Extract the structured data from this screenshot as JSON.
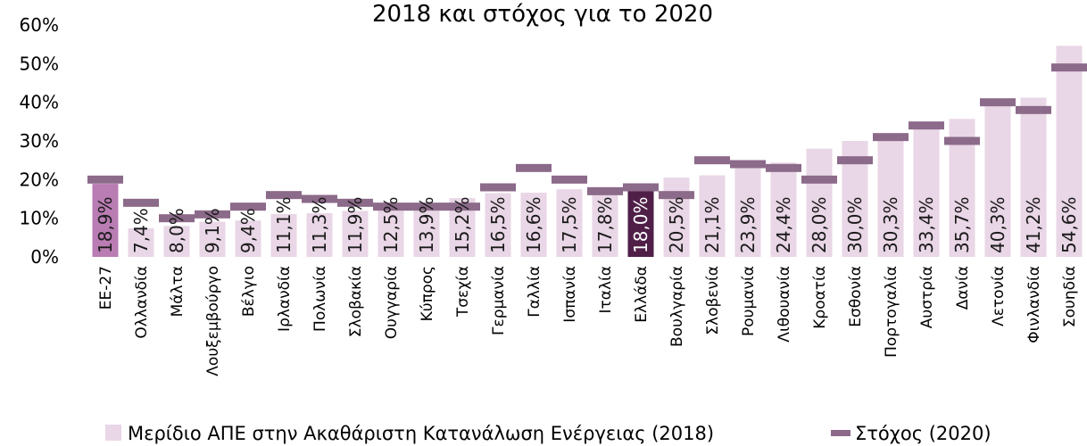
{
  "chart_data": {
    "type": "bar",
    "title": "2018 και στόχος για το 2020",
    "yticks": [
      "0%",
      "10%",
      "20%",
      "30%",
      "40%",
      "50%",
      "60%"
    ],
    "ylim": [
      0,
      60
    ],
    "grid": false,
    "legend_position": "bottom",
    "categories": [
      "ΕΕ-27",
      "Ολλανδία",
      "Μάλτα",
      "Λουξεμβούργο",
      "Βέλγιο",
      "Ιρλανδία",
      "Πολωνία",
      "Σλοβακία",
      "Ουγγαρία",
      "Κύπρος",
      "Τσεχία",
      "Γερμανία",
      "Γαλλία",
      "Ισπανία",
      "Ιταλία",
      "Ελλάδα",
      "Βουλγαρία",
      "Σλοβενία",
      "Ρουμανία",
      "Λιθουανία",
      "Κροατία",
      "Εσθονία",
      "Πορτογαλία",
      "Αυστρία",
      "Δανία",
      "Λετονία",
      "Φινλανδία",
      "Σουηδία"
    ],
    "series": [
      {
        "name": "Μερίδιο ΑΠΕ στην Ακαθάριστη Κατανάλωση Ενέργειας (2018)",
        "kind": "bar",
        "values": [
          18.9,
          7.4,
          8.0,
          9.1,
          9.4,
          11.1,
          11.3,
          11.9,
          12.5,
          13.9,
          15.2,
          16.5,
          16.6,
          17.5,
          17.8,
          18.0,
          20.5,
          21.1,
          23.9,
          24.4,
          28.0,
          30.0,
          30.3,
          33.4,
          35.7,
          40.3,
          41.2,
          54.6
        ],
        "labels": [
          "18,9%",
          "7,4%",
          "8,0%",
          "9,1%",
          "9,4%",
          "11,1%",
          "11,3%",
          "11,9%",
          "12,5%",
          "13,9%",
          "15,2%",
          "16,5%",
          "16,6%",
          "17,5%",
          "17,8%",
          "18,0%",
          "20,5%",
          "21,1%",
          "23,9%",
          "24,4%",
          "28,0%",
          "30,0%",
          "30,3%",
          "33,4%",
          "35,7%",
          "40,3%",
          "41,2%",
          "54,6%"
        ],
        "color": "#e9d6e6",
        "highlight": {
          "ΕΕ-27": "#b97cb3",
          "Ελλάδα": "#4f1f48"
        }
      },
      {
        "name": "Στόχος (2020)",
        "kind": "marker",
        "values": [
          20,
          14,
          10,
          11,
          13,
          16,
          15,
          14,
          13,
          13,
          13,
          18,
          23,
          20,
          17,
          18,
          16,
          25,
          24,
          23,
          20,
          25,
          31,
          34,
          30,
          40,
          38,
          49
        ],
        "color": "#8c6a8a"
      }
    ]
  }
}
